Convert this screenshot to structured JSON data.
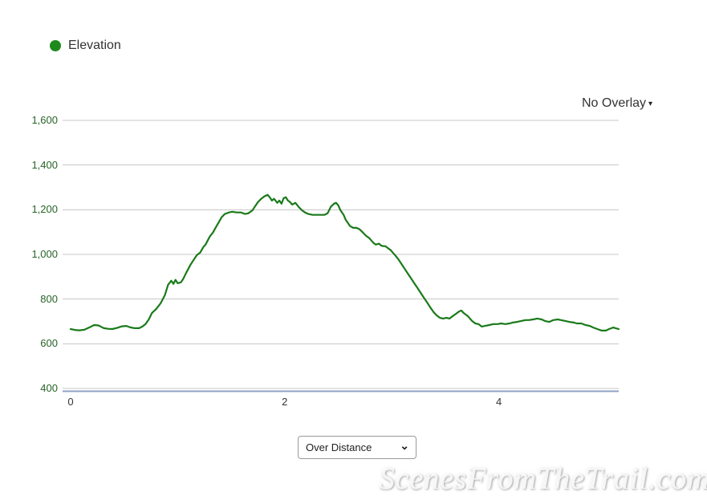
{
  "legend": {
    "label": "Elevation",
    "dot_color": "#1e8a1e"
  },
  "overlay_dropdown": {
    "label": "No Overlay"
  },
  "icons": {
    "overlay_caret": "▾",
    "select_chevron": "⌄"
  },
  "series_select": {
    "selected_option": "Over Distance"
  },
  "watermark": {
    "text": "ScenesFromTheTrail.com"
  },
  "colors": {
    "line": "#1a7a1a",
    "legend_dot": "#1e8a1e",
    "gridline": "#c8c8c8",
    "x_axis_line": "#8fa0c4",
    "y_tick_text": "#276327",
    "x_tick_text": "#333333"
  },
  "chart_data": {
    "type": "line",
    "title": "",
    "xlabel": "",
    "ylabel": "",
    "x_unit": "miles",
    "y_unit": "feet",
    "xlim": [
      0,
      5.12
    ],
    "ylim": [
      400,
      1600
    ],
    "xticks": [
      0,
      2,
      4
    ],
    "ytick_values": [
      400,
      600,
      800,
      1000,
      1200,
      1400,
      1600
    ],
    "ytick_labels": [
      "400",
      "600",
      "800",
      "1,000",
      "1,200",
      "1,400",
      "1,600"
    ],
    "grid": true,
    "legend_position": "top-left",
    "series": [
      {
        "name": "Elevation",
        "color": "#1a7a1a",
        "format": "[miles, feet]",
        "points": [
          [
            0.0,
            666
          ],
          [
            0.04,
            662
          ],
          [
            0.08,
            660
          ],
          [
            0.13,
            663
          ],
          [
            0.17,
            672
          ],
          [
            0.22,
            684
          ],
          [
            0.26,
            682
          ],
          [
            0.31,
            670
          ],
          [
            0.35,
            667
          ],
          [
            0.39,
            666
          ],
          [
            0.44,
            672
          ],
          [
            0.48,
            678
          ],
          [
            0.52,
            680
          ],
          [
            0.56,
            673
          ],
          [
            0.6,
            670
          ],
          [
            0.64,
            670
          ],
          [
            0.67,
            677
          ],
          [
            0.7,
            688
          ],
          [
            0.73,
            709
          ],
          [
            0.76,
            738
          ],
          [
            0.8,
            756
          ],
          [
            0.84,
            781
          ],
          [
            0.88,
            817
          ],
          [
            0.91,
            864
          ],
          [
            0.94,
            882
          ],
          [
            0.96,
            868
          ],
          [
            0.98,
            886
          ],
          [
            1.0,
            871
          ],
          [
            1.03,
            875
          ],
          [
            1.05,
            889
          ],
          [
            1.08,
            918
          ],
          [
            1.12,
            954
          ],
          [
            1.16,
            983
          ],
          [
            1.18,
            997
          ],
          [
            1.21,
            1008
          ],
          [
            1.24,
            1033
          ],
          [
            1.26,
            1044
          ],
          [
            1.28,
            1062
          ],
          [
            1.3,
            1080
          ],
          [
            1.33,
            1098
          ],
          [
            1.35,
            1116
          ],
          [
            1.38,
            1141
          ],
          [
            1.41,
            1166
          ],
          [
            1.44,
            1181
          ],
          [
            1.48,
            1188
          ],
          [
            1.51,
            1191
          ],
          [
            1.55,
            1188
          ],
          [
            1.59,
            1188
          ],
          [
            1.63,
            1181
          ],
          [
            1.66,
            1184
          ],
          [
            1.7,
            1198
          ],
          [
            1.72,
            1213
          ],
          [
            1.75,
            1234
          ],
          [
            1.78,
            1249
          ],
          [
            1.81,
            1260
          ],
          [
            1.84,
            1267
          ],
          [
            1.86,
            1256
          ],
          [
            1.88,
            1241
          ],
          [
            1.9,
            1249
          ],
          [
            1.93,
            1231
          ],
          [
            1.95,
            1241
          ],
          [
            1.97,
            1227
          ],
          [
            1.99,
            1252
          ],
          [
            2.01,
            1256
          ],
          [
            2.03,
            1241
          ],
          [
            2.05,
            1234
          ],
          [
            2.07,
            1223
          ],
          [
            2.1,
            1231
          ],
          [
            2.13,
            1213
          ],
          [
            2.16,
            1198
          ],
          [
            2.19,
            1188
          ],
          [
            2.22,
            1181
          ],
          [
            2.26,
            1177
          ],
          [
            2.3,
            1177
          ],
          [
            2.34,
            1177
          ],
          [
            2.37,
            1177
          ],
          [
            2.4,
            1184
          ],
          [
            2.43,
            1213
          ],
          [
            2.46,
            1227
          ],
          [
            2.48,
            1231
          ],
          [
            2.5,
            1220
          ],
          [
            2.52,
            1198
          ],
          [
            2.55,
            1177
          ],
          [
            2.57,
            1155
          ],
          [
            2.59,
            1141
          ],
          [
            2.61,
            1127
          ],
          [
            2.64,
            1119
          ],
          [
            2.67,
            1119
          ],
          [
            2.7,
            1112
          ],
          [
            2.73,
            1098
          ],
          [
            2.76,
            1083
          ],
          [
            2.79,
            1073
          ],
          [
            2.81,
            1062
          ],
          [
            2.83,
            1051
          ],
          [
            2.85,
            1044
          ],
          [
            2.88,
            1048
          ],
          [
            2.9,
            1040
          ],
          [
            2.92,
            1037
          ],
          [
            2.94,
            1037
          ],
          [
            2.97,
            1026
          ],
          [
            2.99,
            1019
          ],
          [
            3.01,
            1008
          ],
          [
            3.03,
            997
          ],
          [
            3.06,
            979
          ],
          [
            3.09,
            958
          ],
          [
            3.12,
            936
          ],
          [
            3.15,
            914
          ],
          [
            3.18,
            893
          ],
          [
            3.21,
            871
          ],
          [
            3.24,
            850
          ],
          [
            3.27,
            828
          ],
          [
            3.3,
            806
          ],
          [
            3.33,
            785
          ],
          [
            3.36,
            763
          ],
          [
            3.39,
            742
          ],
          [
            3.42,
            727
          ],
          [
            3.45,
            716
          ],
          [
            3.48,
            713
          ],
          [
            3.51,
            716
          ],
          [
            3.54,
            713
          ],
          [
            3.57,
            724
          ],
          [
            3.6,
            734
          ],
          [
            3.63,
            745
          ],
          [
            3.65,
            749
          ],
          [
            3.67,
            738
          ],
          [
            3.69,
            731
          ],
          [
            3.71,
            724
          ],
          [
            3.75,
            702
          ],
          [
            3.78,
            691
          ],
          [
            3.81,
            688
          ],
          [
            3.84,
            677
          ],
          [
            3.87,
            680
          ],
          [
            3.91,
            684
          ],
          [
            3.95,
            688
          ],
          [
            3.99,
            688
          ],
          [
            4.02,
            691
          ],
          [
            4.06,
            688
          ],
          [
            4.1,
            691
          ],
          [
            4.13,
            695
          ],
          [
            4.17,
            698
          ],
          [
            4.21,
            702
          ],
          [
            4.25,
            706
          ],
          [
            4.28,
            706
          ],
          [
            4.32,
            709
          ],
          [
            4.36,
            713
          ],
          [
            4.4,
            709
          ],
          [
            4.43,
            702
          ],
          [
            4.47,
            698
          ],
          [
            4.51,
            706
          ],
          [
            4.55,
            709
          ],
          [
            4.58,
            706
          ],
          [
            4.62,
            702
          ],
          [
            4.66,
            698
          ],
          [
            4.7,
            695
          ],
          [
            4.73,
            691
          ],
          [
            4.77,
            691
          ],
          [
            4.81,
            684
          ],
          [
            4.85,
            680
          ],
          [
            4.88,
            673
          ],
          [
            4.92,
            666
          ],
          [
            4.96,
            659
          ],
          [
            5.0,
            659
          ],
          [
            5.03,
            666
          ],
          [
            5.07,
            673
          ],
          [
            5.09,
            670
          ],
          [
            5.12,
            666
          ]
        ]
      }
    ]
  }
}
